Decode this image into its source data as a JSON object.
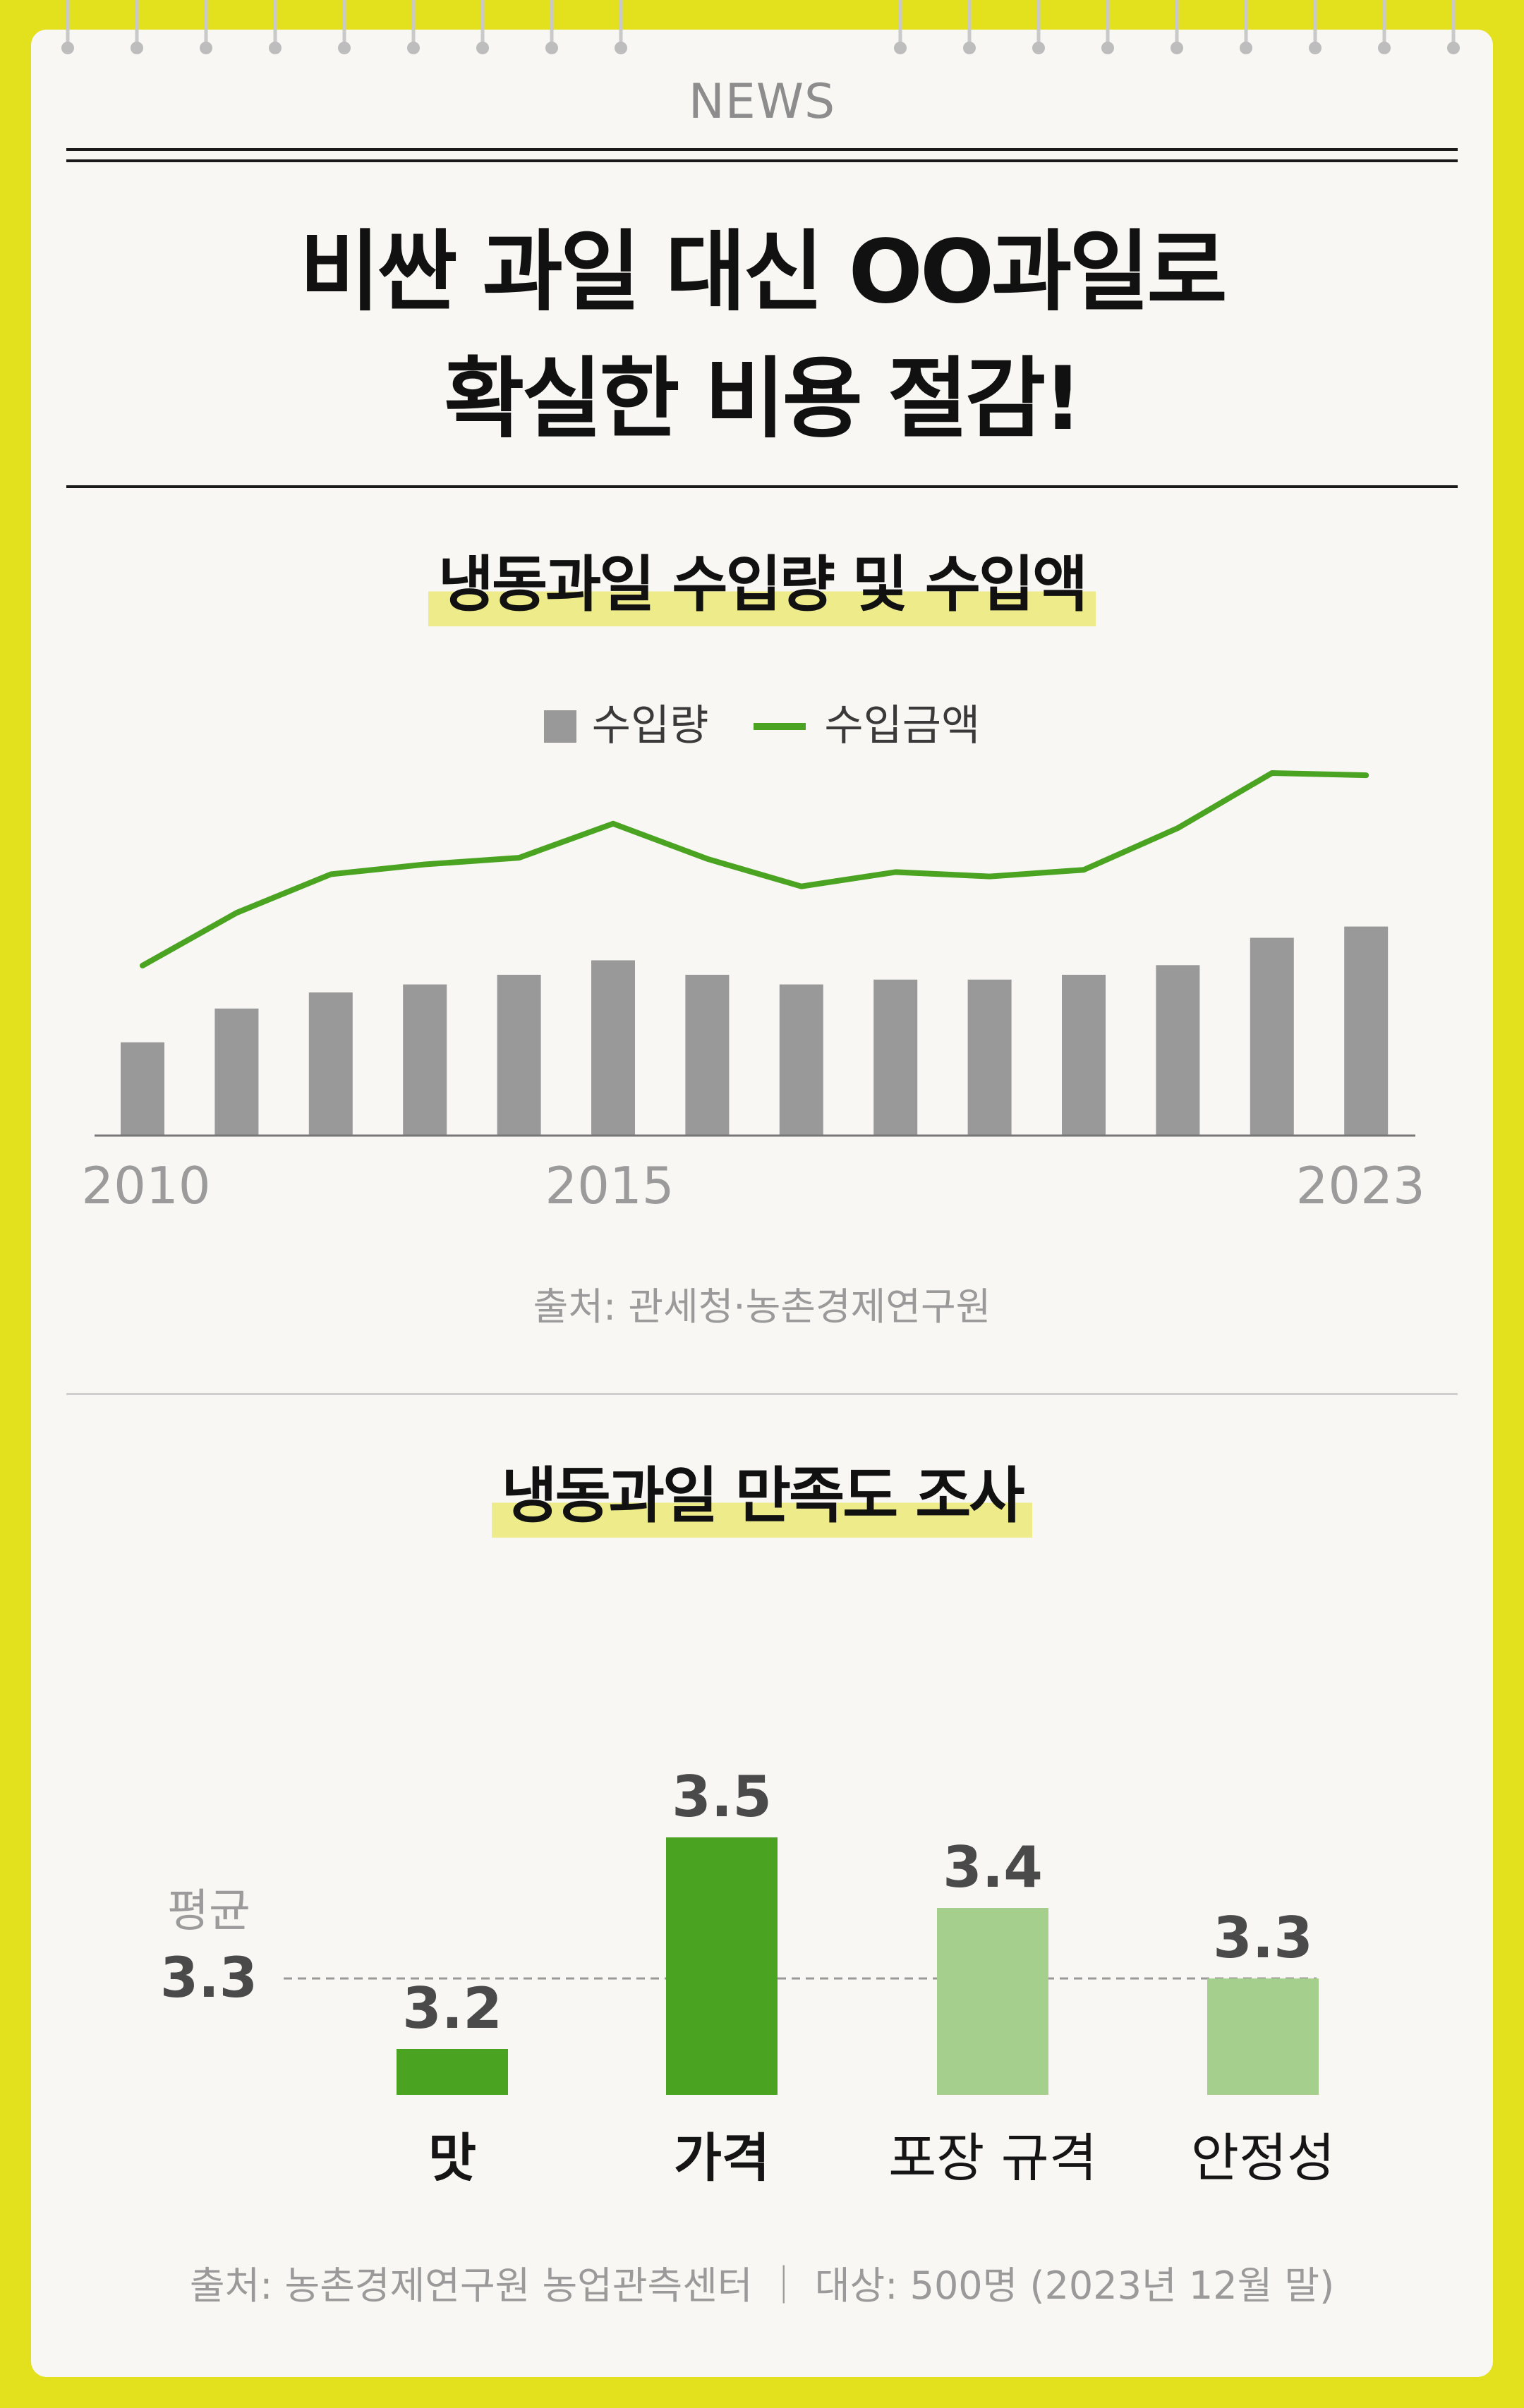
{
  "header": {
    "news_label": "NEWS",
    "headline_line1": "비싼 과일 대신 OO과일로",
    "headline_line2": "확실한 비용 절감!"
  },
  "colors": {
    "background": "#e3e01e",
    "card": "#f8f7f3",
    "bar_gray": "#999999",
    "line_green": "#4aa321",
    "bar_dark_green": "#4aa321",
    "bar_light_green": "#a4cf8c",
    "highlight": "#eeec8a"
  },
  "chart1": {
    "title": "냉동과일 수입량 및 수입액",
    "legend_bar": "수입량",
    "legend_line": "수입금액",
    "source": "출처: 관세청·농촌경제연구원"
  },
  "chart2": {
    "title": "냉동과일 만족도 조사",
    "avg_label": "평균",
    "avg_value": "3.3",
    "source": "출처: 농촌경제연구원 농업관측센터 ｜ 대상: 500명 (2023년 12월 말)"
  },
  "chart_data": [
    {
      "type": "bar",
      "x": [
        2010,
        2011,
        2012,
        2013,
        2014,
        2015,
        2016,
        2017,
        2018,
        2019,
        2020,
        2021,
        2022,
        2023
      ],
      "tick_labels": [
        "2010",
        "2015",
        "2023"
      ],
      "series": [
        {
          "name": "수입량",
          "type": "bar",
          "values": [
            0.58,
            0.79,
            0.89,
            0.94,
            1.0,
            1.09,
            1.0,
            0.94,
            0.97,
            0.97,
            1.0,
            1.06,
            1.23,
            1.3
          ]
        },
        {
          "name": "수입금액",
          "type": "line",
          "values": [
            0.75,
            1.23,
            1.58,
            1.67,
            1.73,
            2.04,
            1.72,
            1.47,
            1.6,
            1.56,
            1.62,
            2.0,
            2.5,
            2.48
          ]
        }
      ],
      "ylim": [
        0,
        2.6
      ],
      "grid": false,
      "legend_position": "top-center"
    },
    {
      "type": "bar",
      "categories": [
        "맛",
        "가격",
        "포장 규격",
        "안정성"
      ],
      "values": [
        3.2,
        3.5,
        3.4,
        3.3
      ],
      "value_labels": [
        "3.2",
        "3.5",
        "3.4",
        "3.3"
      ],
      "bar_colors": [
        "#4aa321",
        "#4aa321",
        "#a4cf8c",
        "#a4cf8c"
      ],
      "reference_line": 3.3,
      "ylim": [
        3.0,
        3.55
      ],
      "grid": false
    }
  ]
}
